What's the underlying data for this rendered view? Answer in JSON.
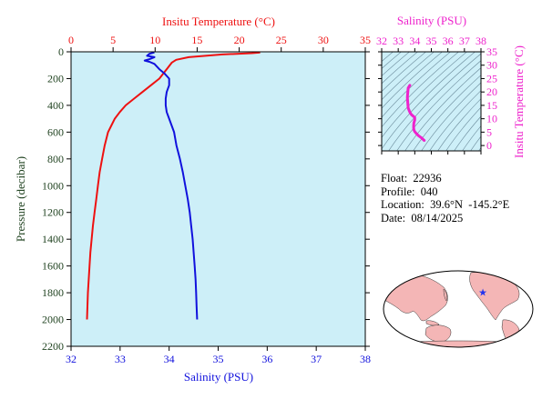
{
  "info": {
    "float_label": "Float:",
    "float_value": "22936",
    "profile_label": "Profile:",
    "profile_value": "040",
    "location_label": "Location:",
    "location_value": "39.6°N  -145.2°E",
    "date_label": "Date:",
    "date_value": "08/14/2025"
  },
  "colors": {
    "temperature": "#ee1111",
    "salinity": "#1111dd",
    "ts": "#ee22cc",
    "axis_dark": "#224422",
    "plot_bg": "#cdeff8",
    "land": "#f4b6b6",
    "ocean": "#ffffff",
    "marker": "#2233ee"
  },
  "chart_data": [
    {
      "type": "line",
      "title": "",
      "xlabel_top": "Insitu Temperature (°C)",
      "xlabel_bottom": "Salinity (PSU)",
      "ylabel": "Pressure (decibar)",
      "x_top_range": [
        0,
        35
      ],
      "x_top_ticks": [
        "0",
        "5",
        "10",
        "15",
        "20",
        "25",
        "30",
        "35"
      ],
      "x_bottom_range": [
        32,
        38
      ],
      "x_bottom_ticks": [
        "32",
        "33",
        "34",
        "35",
        "36",
        "37",
        "38"
      ],
      "y_range": [
        0,
        2200
      ],
      "y_ticks": [
        "0",
        "200",
        "400",
        "600",
        "800",
        "1000",
        "1200",
        "1400",
        "1600",
        "1800",
        "2000",
        "2200"
      ],
      "y_inverted": true,
      "series": [
        {
          "name": "Insitu Temperature (°C)",
          "axis": "top",
          "points": [
            [
              22.5,
              5
            ],
            [
              21.5,
              10
            ],
            [
              18,
              20
            ],
            [
              14,
              40
            ],
            [
              12.5,
              60
            ],
            [
              12,
              80
            ],
            [
              11.5,
              120
            ],
            [
              11,
              160
            ],
            [
              10.5,
              200
            ],
            [
              9.5,
              250
            ],
            [
              8.5,
              300
            ],
            [
              7.5,
              350
            ],
            [
              6.5,
              400
            ],
            [
              5.8,
              450
            ],
            [
              5.2,
              500
            ],
            [
              4.8,
              550
            ],
            [
              4.4,
              600
            ],
            [
              4.0,
              700
            ],
            [
              3.7,
              800
            ],
            [
              3.4,
              900
            ],
            [
              3.2,
              1000
            ],
            [
              3.0,
              1100
            ],
            [
              2.8,
              1200
            ],
            [
              2.6,
              1300
            ],
            [
              2.45,
              1400
            ],
            [
              2.3,
              1500
            ],
            [
              2.2,
              1600
            ],
            [
              2.1,
              1700
            ],
            [
              2.0,
              1800
            ],
            [
              1.95,
              1900
            ],
            [
              1.9,
              2000
            ]
          ]
        },
        {
          "name": "Salinity (PSU)",
          "axis": "bottom",
          "points": [
            [
              33.7,
              5
            ],
            [
              33.6,
              15
            ],
            [
              33.55,
              30
            ],
            [
              33.7,
              40
            ],
            [
              33.6,
              55
            ],
            [
              33.5,
              65
            ],
            [
              33.6,
              75
            ],
            [
              33.7,
              90
            ],
            [
              33.75,
              110
            ],
            [
              33.8,
              130
            ],
            [
              33.9,
              160
            ],
            [
              34.0,
              200
            ],
            [
              34.0,
              250
            ],
            [
              33.95,
              300
            ],
            [
              33.93,
              350
            ],
            [
              33.93,
              400
            ],
            [
              33.95,
              450
            ],
            [
              34.0,
              500
            ],
            [
              34.05,
              550
            ],
            [
              34.1,
              600
            ],
            [
              34.15,
              700
            ],
            [
              34.22,
              800
            ],
            [
              34.28,
              900
            ],
            [
              34.33,
              1000
            ],
            [
              34.38,
              1100
            ],
            [
              34.42,
              1200
            ],
            [
              34.45,
              1300
            ],
            [
              34.48,
              1400
            ],
            [
              34.5,
              1500
            ],
            [
              34.52,
              1600
            ],
            [
              34.54,
              1700
            ],
            [
              34.55,
              1800
            ],
            [
              34.56,
              1900
            ],
            [
              34.57,
              2000
            ]
          ]
        }
      ]
    },
    {
      "type": "scatter",
      "title": "",
      "xlabel": "Salinity (PSU)",
      "ylabel": "Insitu Temperature (°C)",
      "x_range": [
        32,
        38
      ],
      "x_ticks": [
        "32",
        "33",
        "34",
        "35",
        "36",
        "37",
        "38"
      ],
      "y_range": [
        -2,
        35
      ],
      "y_ticks": [
        "0",
        "5",
        "10",
        "15",
        "20",
        "25",
        "30",
        "35"
      ],
      "series": [
        {
          "name": "T-S",
          "points": [
            [
              34.57,
              1.9
            ],
            [
              34.55,
              2.0
            ],
            [
              34.5,
              2.3
            ],
            [
              34.42,
              2.8
            ],
            [
              34.33,
              3.2
            ],
            [
              34.22,
              3.7
            ],
            [
              34.1,
              4.4
            ],
            [
              34.0,
              5.2
            ],
            [
              33.95,
              5.8
            ],
            [
              33.93,
              6.5
            ],
            [
              33.93,
              7.5
            ],
            [
              33.95,
              8.5
            ],
            [
              34.0,
              9.5
            ],
            [
              34.0,
              10.5
            ],
            [
              33.9,
              11
            ],
            [
              33.8,
              11.5
            ],
            [
              33.75,
              12
            ],
            [
              33.7,
              12.5
            ],
            [
              33.6,
              14
            ],
            [
              33.55,
              18
            ],
            [
              33.6,
              21.5
            ],
            [
              33.7,
              22.5
            ]
          ]
        }
      ]
    },
    {
      "type": "map",
      "title": "",
      "marker": {
        "lat": 39.6,
        "lon": -145.2
      }
    }
  ]
}
